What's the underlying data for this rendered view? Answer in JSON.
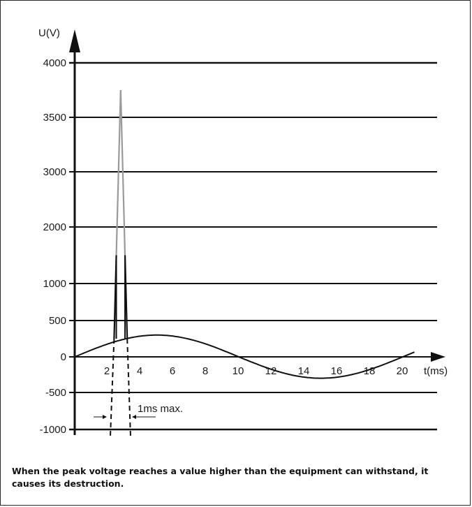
{
  "chart_data": {
    "type": "line",
    "ylabel": "U(V)",
    "xlabel": "t(ms)",
    "y_ticks": [
      "4000",
      "3500",
      "3000",
      "2000",
      "1000",
      "500",
      "0",
      "-500",
      "-1000"
    ],
    "x_ticks": [
      "2",
      "4",
      "6",
      "8",
      "10",
      "12",
      "14",
      "16",
      "18",
      "20"
    ],
    "series": [
      {
        "name": "",
        "kind": "sine",
        "amplitude_V": 300,
        "period_ms": 20,
        "x_range_ms": [
          0,
          20.7
        ]
      },
      {
        "name": "",
        "kind": "spike",
        "x": [
          2.4,
          2.8,
          3.2
        ],
        "y": [
          250,
          3750,
          250
        ]
      }
    ],
    "spike_width_annotation": "1ms max.",
    "colors": {
      "axis": "#111111",
      "grid": "#111111",
      "spike_top": "#9a9a9a",
      "curve": "#111111"
    }
  },
  "caption": "When the peak voltage reaches a value higher than the equipment can withstand, it causes its destruction."
}
